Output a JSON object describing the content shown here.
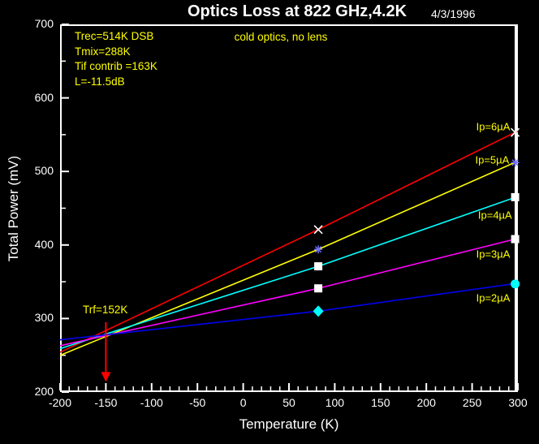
{
  "header": {
    "title": "Optics Loss at 822 GHz,4.2K",
    "date": "4/3/1996"
  },
  "annotations": {
    "subtitle": "cold optics, no lens",
    "info_lines": [
      "Trec=514K DSB",
      "Tmix=288K",
      "Tif contrib =163K",
      "L=-11.5dB"
    ],
    "trf_label": "Trf=152K"
  },
  "colors": {
    "background": "#000000",
    "frame": "#ffffff",
    "tick_text": "#ffffff",
    "annotation_text": "#ffff00",
    "arrow": "#ff0000"
  },
  "chart_data": {
    "type": "line",
    "title": "Optics Loss at 822 GHz,4.2K",
    "xlabel": "Temperature (K)",
    "ylabel": "Total Power (mV)",
    "xlim": [
      -200,
      300
    ],
    "ylim": [
      200,
      700
    ],
    "grid": false,
    "x_major_ticks": [
      -200,
      -150,
      -100,
      -50,
      0,
      50,
      100,
      150,
      200,
      250,
      300
    ],
    "x_minor_step": 10,
    "y_major_ticks": [
      200,
      300,
      400,
      500,
      600,
      700
    ],
    "y_minor_step": 50,
    "series": [
      {
        "name": "Ip=6µA",
        "color": "#ff0000",
        "line": [
          [
            -200,
            254
          ],
          [
            82,
            421
          ],
          [
            300,
            555
          ]
        ],
        "markers": [
          {
            "x": 82,
            "y": 421,
            "shape": "cross"
          },
          {
            "x": 297,
            "y": 553,
            "shape": "cross"
          }
        ],
        "marker_color": "#ffffff",
        "label_at": [
          273,
          561
        ]
      },
      {
        "name": "Ip=5µA",
        "color": "#ffff00",
        "line": [
          [
            -200,
            250
          ],
          [
            82,
            394
          ],
          [
            300,
            514
          ]
        ],
        "markers": [
          {
            "x": 82,
            "y": 394,
            "shape": "star"
          },
          {
            "x": 297,
            "y": 512,
            "shape": "star"
          }
        ],
        "marker_color": "#7070ff",
        "label_at": [
          272,
          516
        ]
      },
      {
        "name": "Ip=4µA",
        "color": "#00ffff",
        "line": [
          [
            -200,
            259
          ],
          [
            82,
            371
          ],
          [
            300,
            466
          ]
        ],
        "markers": [
          {
            "x": 82,
            "y": 371,
            "shape": "square"
          },
          {
            "x": 297,
            "y": 465,
            "shape": "square"
          }
        ],
        "marker_color": "#ffffff",
        "label_at": [
          275,
          441
        ]
      },
      {
        "name": "Ip=3µA",
        "color": "#ff00ff",
        "line": [
          [
            -200,
            263
          ],
          [
            82,
            341
          ],
          [
            300,
            409
          ]
        ],
        "markers": [
          {
            "x": 82,
            "y": 341,
            "shape": "square"
          },
          {
            "x": 297,
            "y": 408,
            "shape": "square"
          }
        ],
        "marker_color": "#ffffff",
        "label_at": [
          273,
          388
        ]
      },
      {
        "name": "Ip=2µA",
        "color": "#0000ee",
        "line": [
          [
            -200,
            271
          ],
          [
            82,
            310
          ],
          [
            300,
            348
          ]
        ],
        "markers": [
          {
            "x": 82,
            "y": 310,
            "shape": "diamond"
          },
          {
            "x": 297,
            "y": 347,
            "shape": "circle"
          }
        ],
        "marker_color": "#00ffff",
        "label_at": [
          273,
          328
        ]
      }
    ],
    "annotation_arrow": {
      "label": "Trf=152K",
      "x": -150,
      "y_from": 295,
      "y_to": 214
    }
  }
}
